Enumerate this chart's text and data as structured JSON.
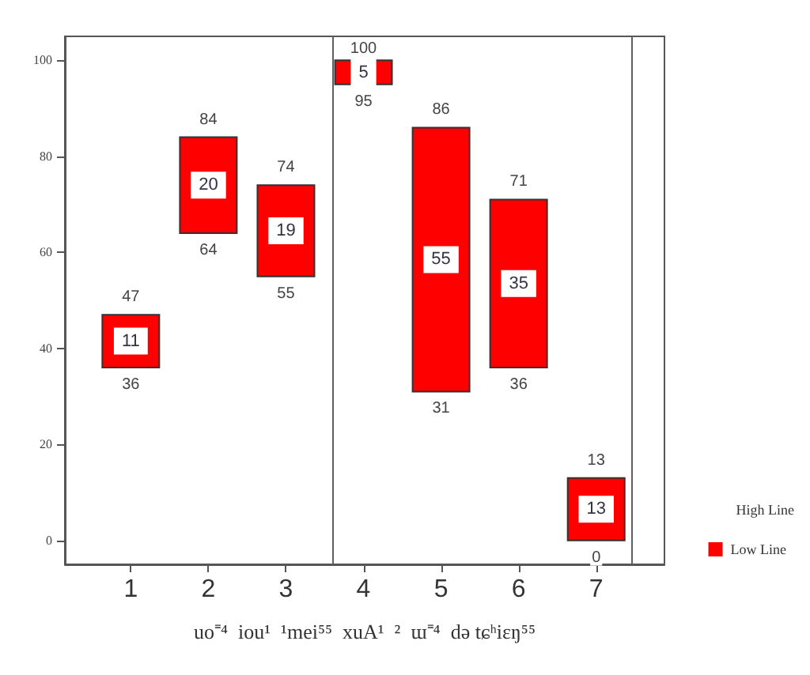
{
  "chart_data": {
    "type": "bar",
    "x": [
      1,
      2,
      3,
      4,
      5,
      6,
      7
    ],
    "xlim": [
      0.15,
      7.88
    ],
    "xticks": [
      1,
      2,
      3,
      4,
      5,
      6,
      7
    ],
    "xlabel": "uo⁼⁴  iou¹  ¹mei⁵⁵  xuA¹  ²  ɯ⁼⁴  də tɕʰiɛŋ⁵⁵",
    "ylim": [
      -5,
      105
    ],
    "yticks": [
      0,
      20,
      40,
      60,
      80,
      100
    ],
    "data_labels": true,
    "legend": "bottom right",
    "ref_lines": [
      {
        "axis": "x",
        "value": 3.6,
        "color": "#606060"
      },
      {
        "axis": "x",
        "value": 7.45,
        "color": "#606060"
      }
    ],
    "series": [
      {
        "name": "Low Line",
        "color": "#ff0000",
        "base": [
          36,
          64,
          55,
          95,
          31,
          36,
          0
        ],
        "values": [
          11,
          20,
          19,
          5,
          55,
          35,
          13
        ]
      }
    ],
    "annotations": [
      "High Line",
      {
        "text": "47",
        "x": 1,
        "y": 47
      },
      {
        "text": "84",
        "x": 2,
        "y": 84
      },
      {
        "text": "74",
        "x": 3,
        "y": 74
      },
      {
        "text": "100",
        "x": 4,
        "y": 100
      },
      {
        "text": "86",
        "x": 5,
        "y": 86
      },
      {
        "text": "71",
        "x": 6,
        "y": 71
      },
      {
        "text": "13",
        "x": 7,
        "y": 13
      },
      {
        "text": "36",
        "x": 1,
        "y": 36
      },
      {
        "text": "64",
        "x": 2,
        "y": 64
      },
      {
        "text": "55",
        "x": 3,
        "y": 55
      },
      {
        "text": "95",
        "x": 4,
        "y": 95
      },
      {
        "text": "31",
        "x": 5,
        "y": 31
      },
      {
        "text": "36",
        "x": 6,
        "y": 36
      },
      {
        "text": "0",
        "x": 7,
        "y": 0
      }
    ]
  }
}
